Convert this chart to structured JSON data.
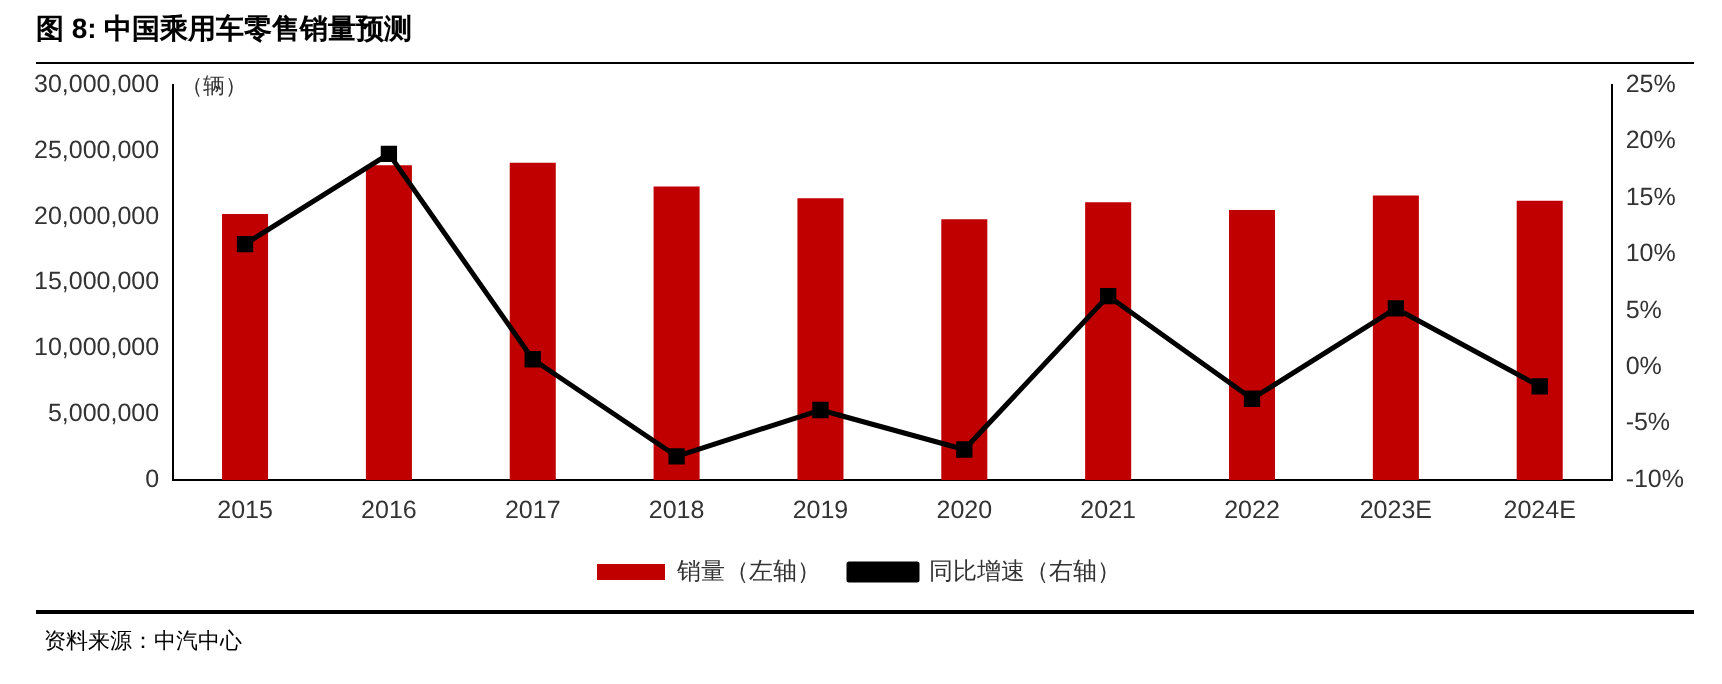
{
  "chart_data": {
    "type": "bar",
    "title": "图 8: 中国乘用车零售销量预测",
    "ylabel": "（辆）",
    "categories": [
      "2015",
      "2016",
      "2017",
      "2018",
      "2019",
      "2020",
      "2021",
      "2022",
      "2023E",
      "2024E"
    ],
    "series": [
      {
        "name": "销量（左轴）",
        "color": "#c00000",
        "values": [
          20200000,
          23900000,
          24100000,
          22300000,
          21400000,
          19800000,
          21100000,
          20500000,
          21600000,
          21200000
        ]
      },
      {
        "name": "同比增速（右轴）",
        "type": "line",
        "axis": "y2",
        "color": "#000000",
        "marker": "square",
        "values": [
          10.9,
          18.9,
          0.7,
          -7.9,
          -3.8,
          -7.3,
          6.3,
          -2.8,
          5.2,
          -1.7
        ]
      }
    ],
    "ylim": [
      0,
      30000000
    ],
    "yticks": [
      {
        "value": 0,
        "label": "0"
      },
      {
        "value": 5000000,
        "label": "5,000,000"
      },
      {
        "value": 10000000,
        "label": "10,000,000"
      },
      {
        "value": 15000000,
        "label": "15,000,000"
      },
      {
        "value": 20000000,
        "label": "20,000,000"
      },
      {
        "value": 25000000,
        "label": "25,000,000"
      },
      {
        "value": 30000000,
        "label": "30,000,000"
      }
    ],
    "y2lim": [
      -10,
      25
    ],
    "y2ticks": [
      {
        "value": -10,
        "label": "-10%"
      },
      {
        "value": -5,
        "label": "-5%"
      },
      {
        "value": 0,
        "label": "0%"
      },
      {
        "value": 5,
        "label": "5%"
      },
      {
        "value": 10,
        "label": "10%"
      },
      {
        "value": 15,
        "label": "15%"
      },
      {
        "value": 20,
        "label": "20%"
      },
      {
        "value": 25,
        "label": "25%"
      }
    ],
    "grid": false,
    "legend": "bottom",
    "annotations": [
      "资料来源：中汽中心"
    ]
  }
}
